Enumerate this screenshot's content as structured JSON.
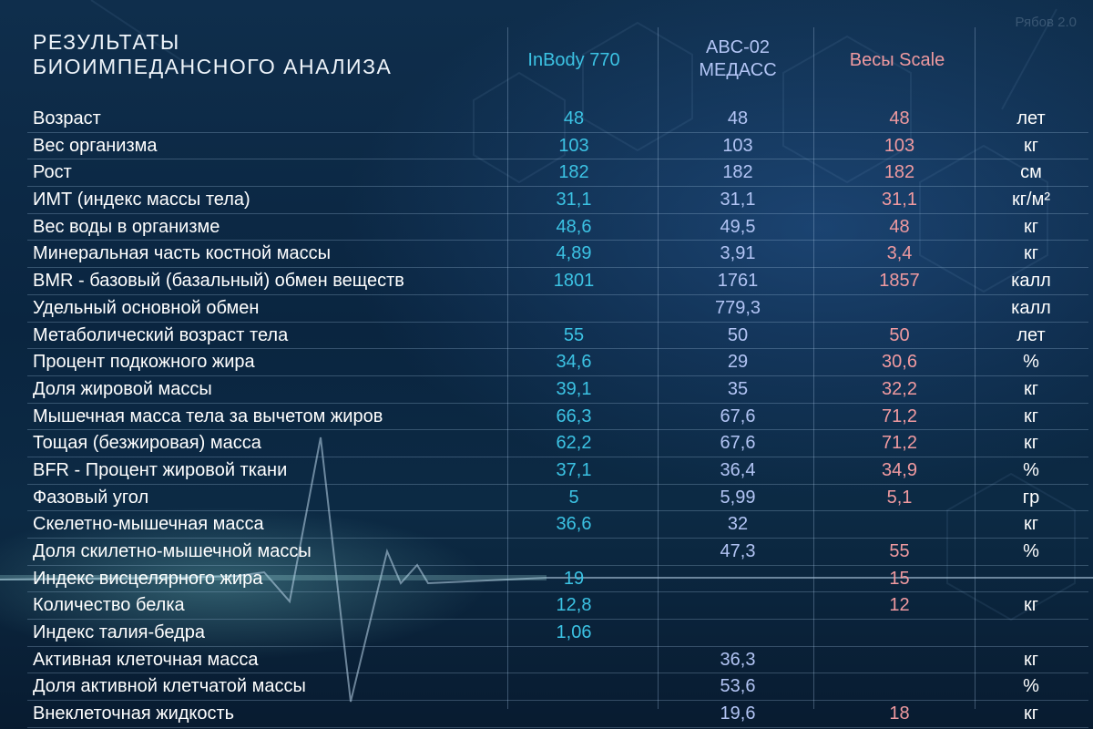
{
  "watermark": "Рябов 2.0",
  "title": {
    "line1": "РЕЗУЛЬТАТЫ",
    "line2": "БИОИМПЕДАНСНОГО АНАЛИЗА"
  },
  "columns": {
    "inbody": "InBody 770",
    "abc_line1": "ABC-02",
    "abc_line2": "МЕДАСС",
    "scale": "Весы Scale"
  },
  "colors": {
    "inbody": "#3cc3e4",
    "abc": "#b2c4f4",
    "scale": "#f09aa0"
  },
  "rows": [
    {
      "label": "Возраст",
      "inbody": "48",
      "abc": "48",
      "scale": "48",
      "unit": "лет"
    },
    {
      "label": "Вес организма",
      "inbody": "103",
      "abc": "103",
      "scale": "103",
      "unit": "кг"
    },
    {
      "label": "Рост",
      "inbody": "182",
      "abc": "182",
      "scale": "182",
      "unit": "см"
    },
    {
      "label": "ИМТ (индекс массы тела)",
      "inbody": "31,1",
      "abc": "31,1",
      "scale": "31,1",
      "unit": "кг/м²"
    },
    {
      "label": "Вес воды в организме",
      "inbody": "48,6",
      "abc": "49,5",
      "scale": "48",
      "unit": "кг"
    },
    {
      "label": "Минеральная часть костной массы",
      "inbody": "4,89",
      "abc": "3,91",
      "scale": "3,4",
      "unit": "кг"
    },
    {
      "label": "BMR - базовый (базальный) обмен веществ",
      "inbody": "1801",
      "abc": "1761",
      "scale": "1857",
      "unit": "калл"
    },
    {
      "label": "Удельный основной обмен",
      "inbody": "",
      "abc": "779,3",
      "scale": "",
      "unit": "калл"
    },
    {
      "label": "Метаболический возраст тела",
      "inbody": "55",
      "abc": "50",
      "scale": "50",
      "unit": "лет"
    },
    {
      "label": "Процент подкожного жира",
      "inbody": "34,6",
      "abc": "29",
      "scale": "30,6",
      "unit": "%"
    },
    {
      "label": "Доля жировой массы",
      "inbody": "39,1",
      "abc": "35",
      "scale": "32,2",
      "unit": "кг"
    },
    {
      "label": "Мышечная масса тела за вычетом жиров",
      "inbody": "66,3",
      "abc": "67,6",
      "scale": "71,2",
      "unit": "кг"
    },
    {
      "label": "Тощая (безжировая) масса",
      "inbody": "62,2",
      "abc": "67,6",
      "scale": "71,2",
      "unit": "кг"
    },
    {
      "label": "BFR - Процент жировой ткани",
      "inbody": "37,1",
      "abc": "36,4",
      "scale": "34,9",
      "unit": "%"
    },
    {
      "label": "Фазовый угол",
      "inbody": "5",
      "abc": "5,99",
      "scale": "5,1",
      "unit": "гр"
    },
    {
      "label": "Скелетно-мышечная масса",
      "inbody": "36,6",
      "abc": "32",
      "scale": "",
      "unit": "кг"
    },
    {
      "label": "Доля скилетно-мышечной массы",
      "inbody": "",
      "abc": "47,3",
      "scale": "55",
      "unit": "%"
    },
    {
      "label": "Индекс висцелярного жира",
      "inbody": "19",
      "abc": "",
      "scale": "15",
      "unit": ""
    },
    {
      "label": "Количество белка",
      "inbody": "12,8",
      "abc": "",
      "scale": "12",
      "unit": "кг"
    },
    {
      "label": "Индекс талия-бедра",
      "inbody": "1,06",
      "abc": "",
      "scale": "",
      "unit": ""
    },
    {
      "label": "Активная клеточная масса",
      "inbody": "",
      "abc": "36,3",
      "scale": "",
      "unit": "кг"
    },
    {
      "label": "Доля активной клетчатой массы",
      "inbody": "",
      "abc": "53,6",
      "scale": "",
      "unit": "%"
    },
    {
      "label": "Внеклеточная жидкость",
      "inbody": "",
      "abc": "19,6",
      "scale": "18",
      "unit": "кг"
    }
  ]
}
